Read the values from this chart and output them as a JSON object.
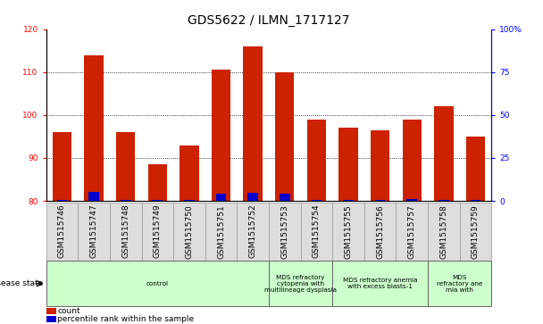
{
  "title": "GDS5622 / ILMN_1717127",
  "samples": [
    "GSM1515746",
    "GSM1515747",
    "GSM1515748",
    "GSM1515749",
    "GSM1515750",
    "GSM1515751",
    "GSM1515752",
    "GSM1515753",
    "GSM1515754",
    "GSM1515755",
    "GSM1515756",
    "GSM1515757",
    "GSM1515758",
    "GSM1515759"
  ],
  "counts": [
    96,
    114,
    96,
    88.5,
    93,
    110.5,
    116,
    110,
    99,
    97,
    96.5,
    99,
    102,
    95
  ],
  "percentile_ranks": [
    0.5,
    5,
    0.5,
    0.5,
    0.5,
    4,
    4.5,
    4,
    0.5,
    0.5,
    0.5,
    1,
    0.5,
    0.5
  ],
  "ymin": 80,
  "ymax": 120,
  "y2min": 0,
  "y2max": 100,
  "yticks": [
    80,
    90,
    100,
    110,
    120
  ],
  "y2ticks": [
    0,
    25,
    50,
    75,
    100
  ],
  "bar_color": "#cc2200",
  "percentile_color": "#0000cc",
  "disease_groups": [
    {
      "label": "control",
      "start": 0,
      "end": 7
    },
    {
      "label": "MDS refractory\ncytopenia with\nmultilineage dysplasia",
      "start": 7,
      "end": 9
    },
    {
      "label": "MDS refractory anemia\nwith excess blasts-1",
      "start": 9,
      "end": 12
    },
    {
      "label": "MDS\nrefractory ane\nmia with",
      "start": 12,
      "end": 14
    }
  ],
  "disease_state_label": "disease state",
  "legend_count": "count",
  "legend_percentile": "percentile rank within the sample",
  "bar_width": 0.6,
  "title_fontsize": 10,
  "tick_fontsize": 6.5,
  "label_fontsize": 6
}
